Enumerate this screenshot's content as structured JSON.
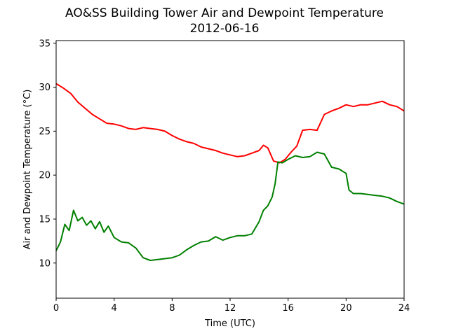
{
  "chart_data": {
    "type": "line",
    "title": "AO&SS Building Tower Air and Dewpoint Temperature",
    "subtitle": "2012-06-16",
    "xlabel": "Time (UTC)",
    "ylabel": "Air and Dewpoint Temperature (°C)",
    "xlim": [
      0,
      24
    ],
    "ylim": [
      6,
      35.3
    ],
    "xticks": [
      0,
      4,
      8,
      12,
      16,
      20,
      24
    ],
    "yticks": [
      10,
      15,
      20,
      25,
      30,
      35
    ],
    "grid": false,
    "series": [
      {
        "color": "#ff0000",
        "x": [
          0,
          0.5,
          1,
          1.5,
          2,
          2.5,
          3,
          3.5,
          4,
          4.5,
          5,
          5.5,
          6,
          6.5,
          7,
          7.5,
          8,
          8.5,
          9,
          9.5,
          10,
          10.5,
          11,
          11.5,
          12,
          12.5,
          13,
          13.5,
          14,
          14.3,
          14.6,
          15,
          15.4,
          15.8,
          16.2,
          16.6,
          17,
          17.5,
          18,
          18.5,
          19,
          19.5,
          20,
          20.5,
          21,
          21.5,
          22,
          22.5,
          23,
          23.5,
          24
        ],
        "y": [
          30.4,
          29.9,
          29.3,
          28.3,
          27.6,
          26.9,
          26.4,
          25.9,
          25.8,
          25.6,
          25.3,
          25.2,
          25.4,
          25.3,
          25.2,
          25.0,
          24.5,
          24.1,
          23.8,
          23.6,
          23.2,
          23.0,
          22.8,
          22.5,
          22.3,
          22.1,
          22.2,
          22.5,
          22.8,
          23.4,
          23.1,
          21.6,
          21.4,
          21.8,
          22.6,
          23.3,
          25.1,
          25.2,
          25.1,
          26.9,
          27.3,
          27.6,
          28.0,
          27.8,
          28.0,
          28.0,
          28.2,
          28.4,
          28.0,
          27.8,
          27.3
        ]
      },
      {
        "color": "#008000",
        "x": [
          0,
          0.3,
          0.6,
          0.9,
          1.2,
          1.5,
          1.8,
          2.1,
          2.4,
          2.7,
          3,
          3.3,
          3.6,
          4,
          4.5,
          5,
          5.5,
          6,
          6.5,
          7,
          7.5,
          8,
          8.5,
          9,
          9.5,
          10,
          10.5,
          11,
          11.5,
          12,
          12.5,
          13,
          13.5,
          14,
          14.3,
          14.6,
          14.9,
          15.1,
          15.3,
          15.6,
          16,
          16.5,
          17,
          17.5,
          18,
          18.5,
          19,
          19.5,
          20,
          20.2,
          20.5,
          21,
          21.5,
          22,
          22.5,
          23,
          23.5,
          24
        ],
        "y": [
          11.4,
          12.4,
          14.4,
          13.7,
          16.0,
          14.8,
          15.2,
          14.3,
          14.8,
          13.9,
          14.7,
          13.5,
          14.2,
          12.9,
          12.4,
          12.3,
          11.7,
          10.6,
          10.3,
          10.4,
          10.5,
          10.6,
          10.9,
          11.5,
          12.0,
          12.4,
          12.5,
          13.0,
          12.6,
          12.9,
          13.1,
          13.1,
          13.3,
          14.7,
          16.0,
          16.5,
          17.5,
          19.0,
          21.5,
          21.4,
          21.8,
          22.2,
          22.0,
          22.1,
          22.6,
          22.4,
          20.9,
          20.7,
          20.2,
          18.3,
          17.9,
          17.9,
          17.8,
          17.7,
          17.6,
          17.4,
          17.0,
          16.7
        ]
      }
    ]
  },
  "colors": {
    "axes": "#000000",
    "background": "#ffffff"
  }
}
